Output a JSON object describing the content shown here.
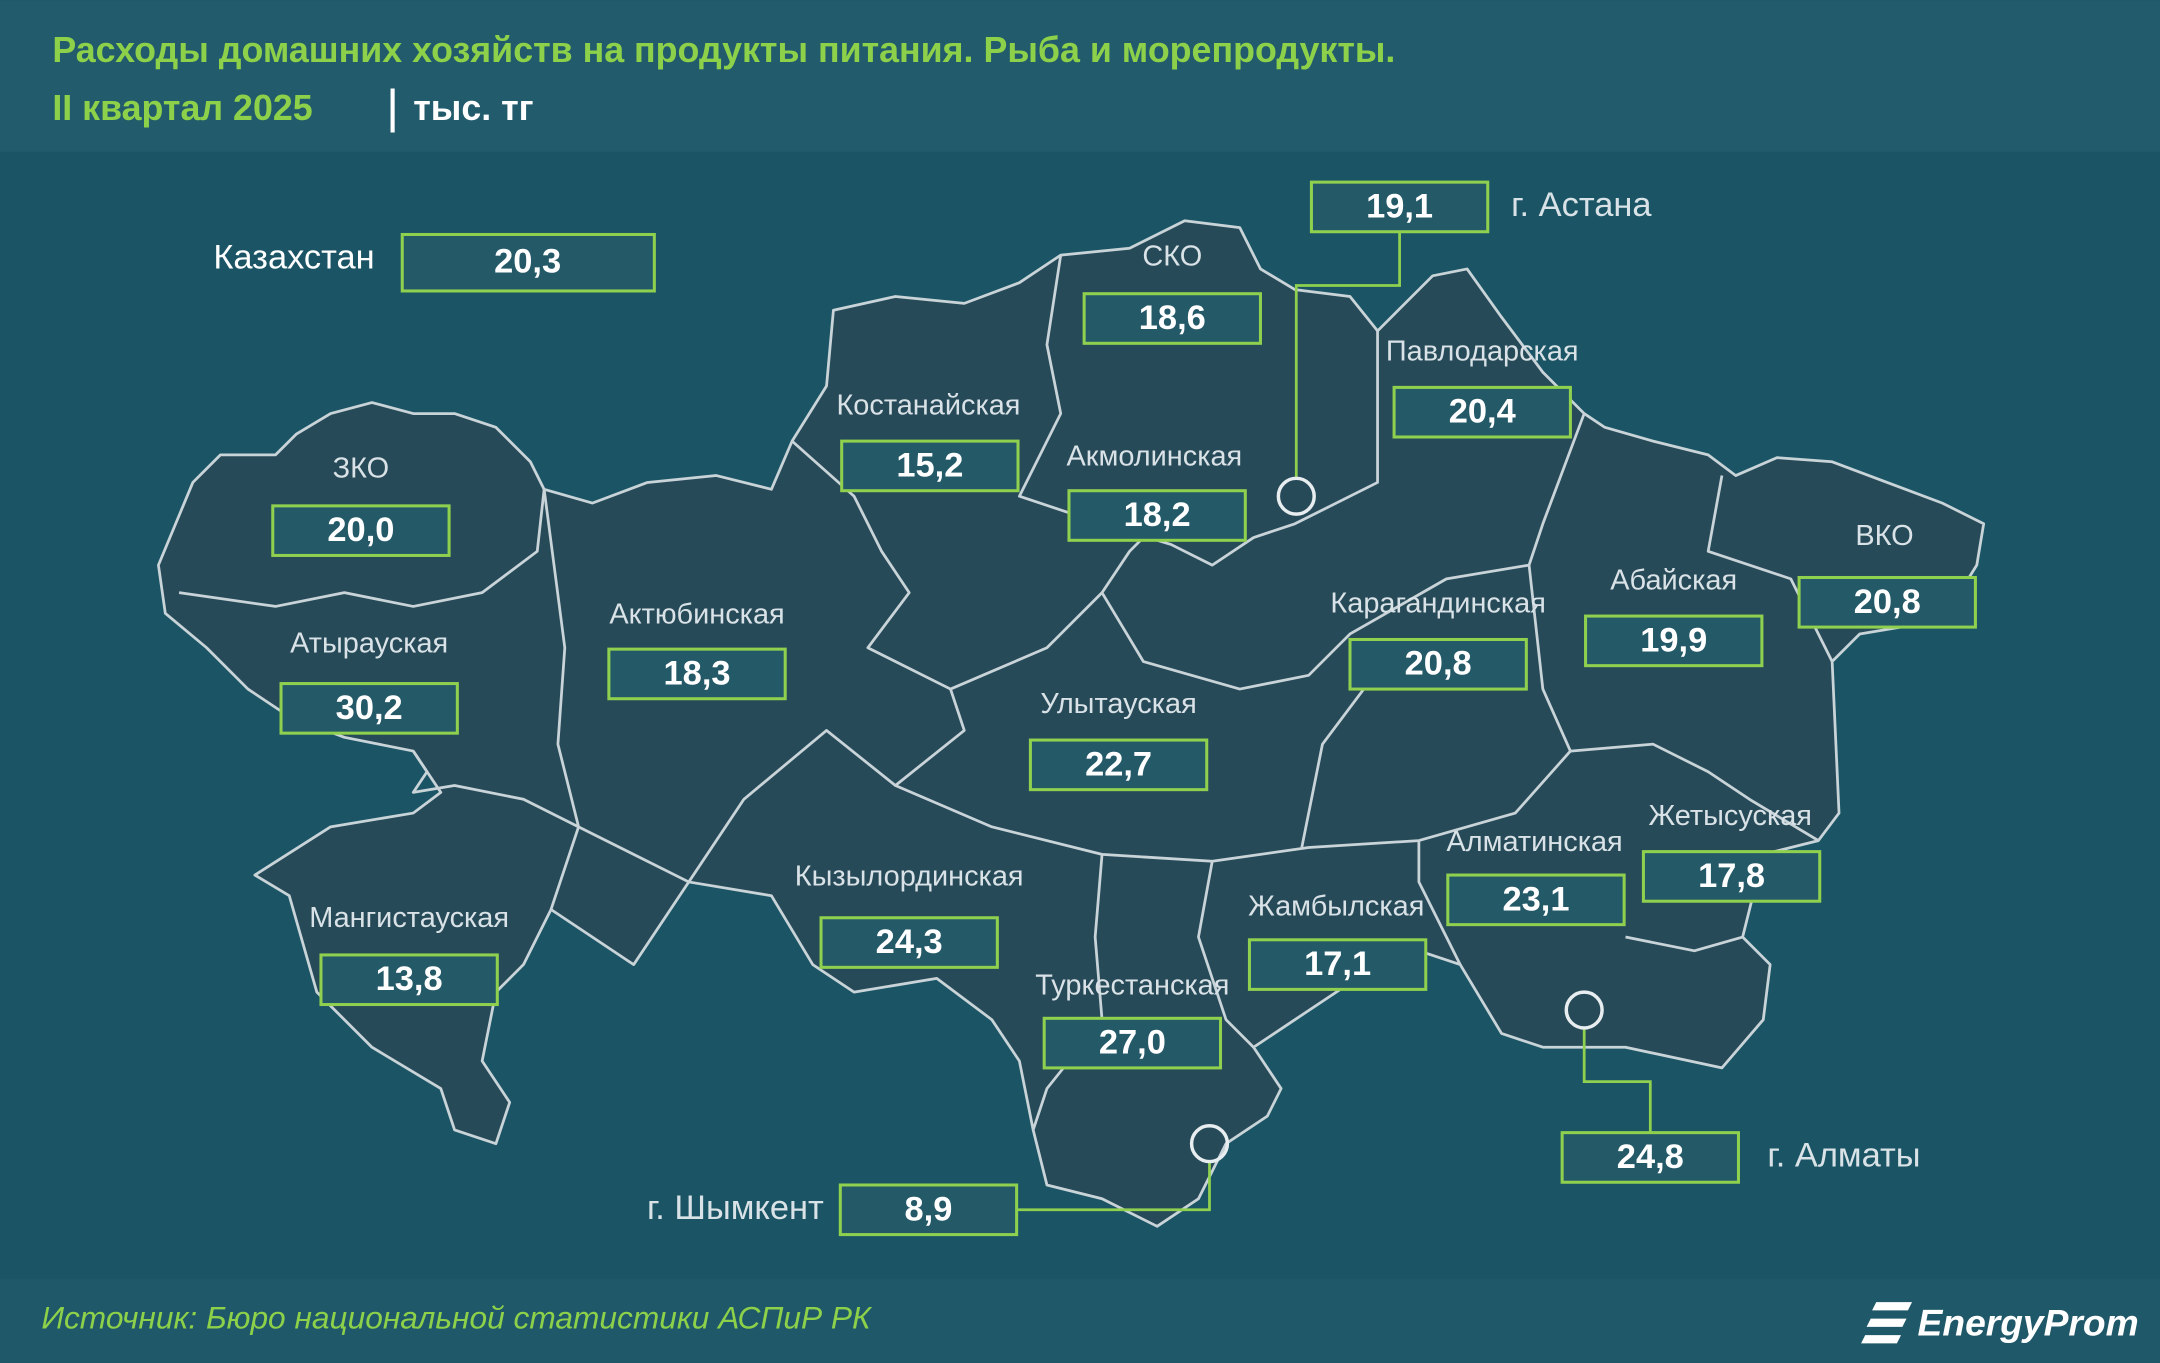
{
  "header": {
    "title": "Расходы домашних хозяйств на продукты питания. Рыба и морепродукты.",
    "period": "II квартал 2025",
    "unit": "тыс. тг"
  },
  "country": {
    "name": "Казахстан",
    "value": "20,3"
  },
  "regions": [
    {
      "name": "СКО",
      "value": "18,6"
    },
    {
      "name": "Костанайская",
      "value": "15,2"
    },
    {
      "name": "Акмолинская",
      "value": "18,2"
    },
    {
      "name": "Павлодарская",
      "value": "20,4"
    },
    {
      "name": "ЗКО",
      "value": "20,0"
    },
    {
      "name": "Атырауская",
      "value": "30,2"
    },
    {
      "name": "Актюбинская",
      "value": "18,3"
    },
    {
      "name": "Карагандинская",
      "value": "20,8"
    },
    {
      "name": "Абайская",
      "value": "19,9"
    },
    {
      "name": "ВКО",
      "value": "20,8"
    },
    {
      "name": "Улытауская",
      "value": "22,7"
    },
    {
      "name": "Кызылординская",
      "value": "24,3"
    },
    {
      "name": "Мангистауская",
      "value": "13,8"
    },
    {
      "name": "Жамбылская",
      "value": "17,1"
    },
    {
      "name": "Алматинская",
      "value": "23,1"
    },
    {
      "name": "Жетысуская",
      "value": "17,8"
    },
    {
      "name": "Туркестанская",
      "value": "27,0"
    }
  ],
  "cities": [
    {
      "name": "г. Астана",
      "value": "19,1"
    },
    {
      "name": "г. Алматы",
      "value": "24,8"
    },
    {
      "name": "г. Шымкент",
      "value": "8,9"
    }
  ],
  "source": "Источник: Бюро национальной статистики АСПиР РК",
  "logo": "EnergyProm"
}
